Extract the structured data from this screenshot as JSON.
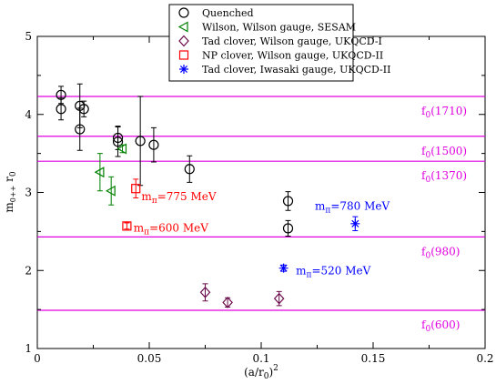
{
  "chart_data": {
    "type": "scatter",
    "xlabel": "(a/r",
    "xlabel_sub": "0",
    "xlabel_tail": ")",
    "xlabel_sup": "2",
    "ylabel": "m",
    "ylabel_sub": "0++",
    "ylabel_tail": " r",
    "ylabel_sub2": "0",
    "xlim": [
      0,
      0.2
    ],
    "ylim": [
      1,
      5
    ],
    "xticks": [
      0,
      0.05,
      0.1,
      0.15,
      0.2
    ],
    "xtick_labels": [
      "0",
      "0.05",
      "0.1",
      "0.15",
      "0.2"
    ],
    "yticks": [
      1,
      2,
      3,
      4,
      5
    ],
    "ytick_labels": [
      "1",
      "2",
      "3",
      "4",
      "5"
    ],
    "legend_position": "top-center",
    "reference_lines": [
      {
        "label": "f",
        "sub": "0",
        "tail": "(1710)",
        "y": 4.23,
        "color": "#e000e0"
      },
      {
        "label": "f",
        "sub": "0",
        "tail": "(1500)",
        "y": 3.72,
        "color": "#e000e0"
      },
      {
        "label": "f",
        "sub": "0",
        "tail": "(1370)",
        "y": 3.4,
        "color": "#e000e0"
      },
      {
        "label": "f",
        "sub": "0",
        "tail": "(980)",
        "y": 2.43,
        "color": "#e000e0"
      },
      {
        "label": "f",
        "sub": "0",
        "tail": "(600)",
        "y": 1.49,
        "color": "#e000e0"
      }
    ],
    "series": [
      {
        "name": "Quenched",
        "marker": "circle",
        "color": "#000000",
        "points": [
          {
            "x": 0.0106,
            "y": 4.25,
            "err": 0.11
          },
          {
            "x": 0.0106,
            "y": 4.07,
            "err": 0.14
          },
          {
            "x": 0.019,
            "y": 4.11,
            "err": 0.28
          },
          {
            "x": 0.019,
            "y": 3.81,
            "err": 0.27
          },
          {
            "x": 0.0208,
            "y": 4.07,
            "err": 0.1
          },
          {
            "x": 0.036,
            "y": 3.7,
            "err": 0.15
          },
          {
            "x": 0.036,
            "y": 3.65,
            "err": 0.19
          },
          {
            "x": 0.046,
            "y": 3.66,
            "err": 0.57
          },
          {
            "x": 0.052,
            "y": 3.61,
            "err": 0.22
          },
          {
            "x": 0.068,
            "y": 3.3,
            "err": 0.17
          },
          {
            "x": 0.112,
            "y": 2.89,
            "err": 0.12
          },
          {
            "x": 0.112,
            "y": 2.54,
            "err": 0.1
          }
        ]
      },
      {
        "name": "Wilson, Wilson gauge, SESAM",
        "marker": "triangle-left",
        "color": "#008000",
        "points": [
          {
            "x": 0.028,
            "y": 3.26,
            "err": 0.24
          },
          {
            "x": 0.033,
            "y": 3.02,
            "err": 0.18
          },
          {
            "x": 0.038,
            "y": 3.56,
            "err": 0.05
          }
        ]
      },
      {
        "name": "Tad clover, Wilson gauge, UKQCD-I",
        "marker": "diamond",
        "color": "#6a0a4a",
        "points": [
          {
            "x": 0.075,
            "y": 1.72,
            "err": 0.11
          },
          {
            "x": 0.085,
            "y": 1.59,
            "err": 0.06
          },
          {
            "x": 0.108,
            "y": 1.64,
            "err": 0.09
          }
        ]
      },
      {
        "name": "NP clover, Wilson gauge, UKQCD-II",
        "marker": "square",
        "color": "#ff0000",
        "points": [
          {
            "x": 0.044,
            "y": 3.05,
            "err": 0.12
          },
          {
            "x": 0.04,
            "y": 2.57,
            "err": 0.04
          }
        ]
      },
      {
        "name": "Tad clover, Iwasaki gauge, UKQCD-II",
        "marker": "asterisk",
        "color": "#0000ff",
        "points": [
          {
            "x": 0.142,
            "y": 2.6,
            "err": 0.09
          },
          {
            "x": 0.11,
            "y": 2.03,
            "err": 0.04
          }
        ]
      }
    ],
    "annotations": [
      {
        "id": "mpi-775",
        "pre": "m",
        "sub": "π",
        "post": "=775 MeV",
        "color": "#ff0000",
        "x": 0.0465,
        "y": 2.9
      },
      {
        "id": "mpi-600",
        "pre": "m",
        "sub": "π",
        "post": "=600 MeV",
        "color": "#ff0000",
        "x": 0.043,
        "y": 2.5
      },
      {
        "id": "mpi-780",
        "pre": "m",
        "sub": "π",
        "post": "=780 MeV",
        "color": "#0000ff",
        "x": 0.124,
        "y": 2.78
      },
      {
        "id": "mpi-520",
        "pre": "m",
        "sub": "π",
        "post": "=520 MeV",
        "color": "#0000ff",
        "x": 0.1155,
        "y": 1.95
      }
    ]
  }
}
